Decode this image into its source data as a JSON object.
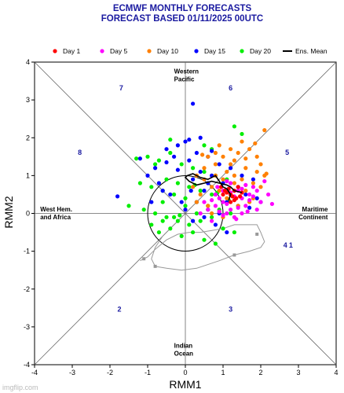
{
  "chart_data": {
    "type": "scatter",
    "title": "ECMWF MONTHLY FORECASTS",
    "subtitle": "FORECAST  BASED 01/11/2025 00UTC",
    "xlabel": "RMM1",
    "ylabel": "RMM2",
    "xlim": [
      -4,
      4
    ],
    "ylim": [
      -4,
      4
    ],
    "x_ticks": [
      "-4",
      "-3",
      "-2",
      "-1",
      "0",
      "1",
      "2",
      "3",
      "4"
    ],
    "y_ticks": [
      "-4",
      "-3",
      "-2",
      "-1",
      "0",
      "1",
      "2",
      "3",
      "4"
    ],
    "grid": false,
    "legend_position": "top",
    "legend": [
      {
        "label": "Day 1",
        "color": "#ff0000",
        "marker": "dot"
      },
      {
        "label": "Day 5",
        "color": "#ff00ff",
        "marker": "dot"
      },
      {
        "label": "Day 10",
        "color": "#ff8000",
        "marker": "dot"
      },
      {
        "label": "Day 15",
        "color": "#0000ff",
        "marker": "dot"
      },
      {
        "label": "Day 20",
        "color": "#00ee00",
        "marker": "dot"
      },
      {
        "label": "Ens. Mean",
        "color": "#000000",
        "marker": "line"
      }
    ],
    "phases": [
      {
        "label": "1",
        "x": 2.8,
        "y": -0.9
      },
      {
        "label": "2",
        "x": -1.75,
        "y": -2.6
      },
      {
        "label": "3",
        "x": 1.2,
        "y": -2.6
      },
      {
        "label": "4",
        "x": 2.65,
        "y": -0.9
      },
      {
        "label": "5",
        "x": 2.7,
        "y": 1.55
      },
      {
        "label": "6",
        "x": 1.2,
        "y": 3.25
      },
      {
        "label": "7",
        "x": -1.7,
        "y": 3.25
      },
      {
        "label": "8",
        "x": -2.8,
        "y": 1.55
      }
    ],
    "regions": [
      {
        "lines": [
          "Western",
          "Pacific"
        ],
        "x": -0.3,
        "y": 3.7,
        "anchor": "start"
      },
      {
        "lines": [
          "West Hem.",
          "and Africa"
        ],
        "x": -3.85,
        "y": 0.05,
        "anchor": "start"
      },
      {
        "lines": [
          "Maritime",
          "Continent"
        ],
        "x": 3.78,
        "y": 0.05,
        "anchor": "end"
      },
      {
        "lines": [
          "Indian",
          "Ocean"
        ],
        "x": -0.3,
        "y": -3.55,
        "anchor": "start"
      }
    ],
    "ens_mean": {
      "x": [
        1.5,
        1.3,
        1.2,
        1.1,
        0.9,
        0.7,
        0.5,
        0.3,
        0.1,
        0.0,
        0.05,
        0.2,
        0.4,
        0.6,
        0.8,
        0.9,
        1.0,
        1.1,
        1.2,
        1.15
      ],
      "y": [
        0.55,
        0.6,
        0.7,
        0.75,
        0.8,
        0.85,
        0.8,
        0.75,
        0.85,
        0.95,
        1.0,
        1.05,
        0.95,
        0.9,
        1.0,
        0.85,
        0.7,
        0.65,
        0.5,
        0.35
      ]
    },
    "gray_track": {
      "x": [
        -1.2,
        -1.0,
        -0.8,
        -0.5,
        -0.2,
        0.1,
        0.4,
        0.7,
        1.0,
        1.3,
        1.6,
        1.9,
        2.0,
        2.1,
        2.0,
        1.7,
        1.3,
        0.9,
        0.3,
        -0.1,
        -0.5,
        -0.8,
        -0.9,
        -0.8,
        -0.6
      ],
      "y": [
        -1.25,
        -1.15,
        -0.95,
        -0.7,
        -0.55,
        -0.5,
        -0.5,
        -0.45,
        -0.4,
        -0.3,
        -0.3,
        -0.3,
        -0.5,
        -0.75,
        -0.9,
        -1.0,
        -1.1,
        -1.25,
        -1.45,
        -1.5,
        -1.45,
        -1.4,
        -1.2,
        -0.9,
        -0.6
      ]
    },
    "gray_markers": {
      "x": [
        -1.1,
        -0.8,
        1.3,
        1.9
      ],
      "y": [
        -1.2,
        -1.4,
        -1.1,
        -0.55
      ]
    },
    "series": [
      {
        "name": "Day 1",
        "color": "#ff0000",
        "x": [
          1.2,
          1.3,
          1.1,
          1.4,
          1.0,
          1.25,
          1.35,
          1.15,
          1.05,
          1.5,
          1.45,
          0.95,
          1.3,
          1.2
        ],
        "y": [
          0.5,
          0.6,
          0.55,
          0.7,
          0.5,
          0.45,
          0.4,
          0.65,
          0.6,
          0.55,
          0.45,
          0.7,
          0.35,
          0.3
        ]
      },
      {
        "name": "Day 5",
        "color": "#ff00ff",
        "x": [
          0.8,
          1.0,
          1.2,
          1.5,
          1.7,
          1.9,
          2.0,
          1.1,
          0.9,
          1.3,
          1.6,
          1.8,
          0.6,
          0.7,
          1.4,
          1.2,
          1.0,
          2.2,
          1.5,
          0.8,
          1.1,
          1.7,
          1.9,
          0.5,
          1.3,
          1.6,
          1.0,
          0.7,
          1.4,
          1.8,
          2.1,
          1.2,
          0.9,
          1.5,
          1.1,
          0.4,
          1.65,
          1.35,
          2.3,
          0.85
        ],
        "y": [
          0.2,
          0.3,
          0.1,
          0.4,
          0.5,
          0.6,
          0.3,
          0.0,
          0.4,
          -0.1,
          0.2,
          0.7,
          0.1,
          -0.2,
          0.6,
          0.8,
          0.6,
          0.5,
          0.0,
          0.5,
          0.25,
          0.35,
          0.1,
          0.3,
          0.45,
          0.75,
          -0.05,
          0.35,
          0.15,
          0.45,
          0.85,
          0.55,
          0.05,
          0.65,
          0.85,
          0.0,
          0.05,
          -0.15,
          0.25,
          0.7
        ]
      },
      {
        "name": "Day 10",
        "color": "#ff8000",
        "x": [
          0.5,
          0.8,
          1.0,
          1.3,
          1.6,
          1.9,
          2.1,
          1.2,
          0.9,
          0.6,
          1.5,
          1.8,
          0.3,
          0.7,
          1.1,
          1.4,
          1.7,
          2.0,
          0.4,
          1.0,
          1.3,
          1.6,
          0.2,
          0.8,
          1.9,
          1.2,
          0.5,
          1.5,
          0.9,
          1.1,
          1.7,
          0.6,
          1.4,
          2.1,
          0.7,
          1.8,
          1.0,
          2.0,
          0.3,
          1.6,
          0.8,
          1.3,
          2.15,
          1.85,
          0.45
        ],
        "y": [
          1.2,
          1.3,
          1.5,
          1.4,
          1.2,
          1.1,
          2.2,
          1.7,
          1.8,
          1.5,
          0.9,
          0.8,
          1.0,
          0.7,
          1.1,
          1.6,
          1.7,
          1.3,
          0.5,
          0.9,
          1.0,
          0.6,
          0.7,
          1.0,
          1.5,
          1.3,
          0.9,
          1.9,
          0.6,
          0.4,
          0.3,
          0.2,
          0.2,
          1.0,
          0.0,
          0.4,
          -0.1,
          0.7,
          0.3,
          1.45,
          1.6,
          0.8,
          1.05,
          1.85,
          1.55
        ]
      },
      {
        "name": "Day 15",
        "color": "#0000ff",
        "x": [
          -0.5,
          -0.2,
          0.0,
          0.3,
          0.6,
          0.9,
          1.2,
          1.5,
          1.8,
          -0.8,
          -1.0,
          -0.3,
          0.1,
          0.4,
          0.7,
          1.0,
          1.3,
          1.6,
          1.9,
          0.15,
          0.2,
          -0.6,
          -0.9,
          0.5,
          0.8,
          1.1,
          1.4,
          -0.1,
          0.3,
          0.6,
          0.9,
          -0.4,
          -0.7,
          0.0,
          0.2,
          0.5,
          0.8,
          1.1,
          -1.8,
          -1.2,
          -0.5,
          0.1,
          0.4,
          0.7,
          1.4,
          1.7,
          2.0,
          0.2,
          -0.2,
          0.6
        ],
        "y": [
          1.7,
          1.8,
          1.9,
          1.6,
          1.5,
          1.3,
          1.2,
          1.0,
          0.9,
          1.2,
          1.0,
          1.5,
          1.4,
          1.1,
          1.0,
          0.8,
          0.6,
          0.5,
          0.4,
          0.6,
          2.9,
          0.6,
          0.3,
          0.6,
          0.5,
          0.3,
          0.2,
          0.3,
          0.3,
          0.1,
          0.0,
          0.5,
          0.8,
          0.1,
          -0.2,
          -0.1,
          -0.3,
          -0.5,
          0.45,
          1.45,
          1.35,
          1.95,
          2.0,
          1.65,
          0.7,
          0.15,
          0.3,
          0.9,
          1.15,
          0.8
        ]
      },
      {
        "name": "Day 20",
        "color": "#00ee00",
        "x": [
          -1.0,
          -0.7,
          -0.4,
          -0.1,
          0.2,
          0.5,
          0.8,
          1.1,
          -1.2,
          -0.9,
          -0.6,
          -0.3,
          0.0,
          0.3,
          0.6,
          0.9,
          1.2,
          -1.5,
          -1.1,
          -0.8,
          -0.5,
          -0.2,
          0.1,
          0.4,
          0.7,
          1.0,
          1.3,
          -0.7,
          -0.4,
          -0.1,
          0.2,
          0.5,
          0.8,
          -0.9,
          -0.6,
          -0.3,
          0.0,
          0.3,
          -0.5,
          -0.2,
          0.1,
          0.4,
          0.7,
          1.3,
          1.5,
          0.7,
          0.5,
          -0.8,
          -1.3,
          -0.4,
          -0.6,
          0.25,
          0.85,
          1.15,
          -0.15
        ],
        "y": [
          1.5,
          1.4,
          1.6,
          1.3,
          1.2,
          1.1,
          1.0,
          0.9,
          0.8,
          0.7,
          0.6,
          0.5,
          0.4,
          0.3,
          0.2,
          0.1,
          0.0,
          0.2,
          0.1,
          0.0,
          -0.1,
          -0.2,
          -0.3,
          -0.2,
          -0.1,
          -0.4,
          -0.5,
          -0.5,
          -0.4,
          -0.6,
          -0.5,
          -0.7,
          -0.8,
          -0.3,
          -0.2,
          -0.1,
          0.2,
          0.0,
          0.9,
          0.8,
          0.7,
          0.6,
          0.5,
          2.3,
          2.1,
          1.7,
          1.8,
          1.3,
          1.45,
          1.95,
          0.3,
          0.75,
          0.55,
          0.35,
          -0.05
        ]
      }
    ]
  },
  "watermark": "imgflip.com"
}
